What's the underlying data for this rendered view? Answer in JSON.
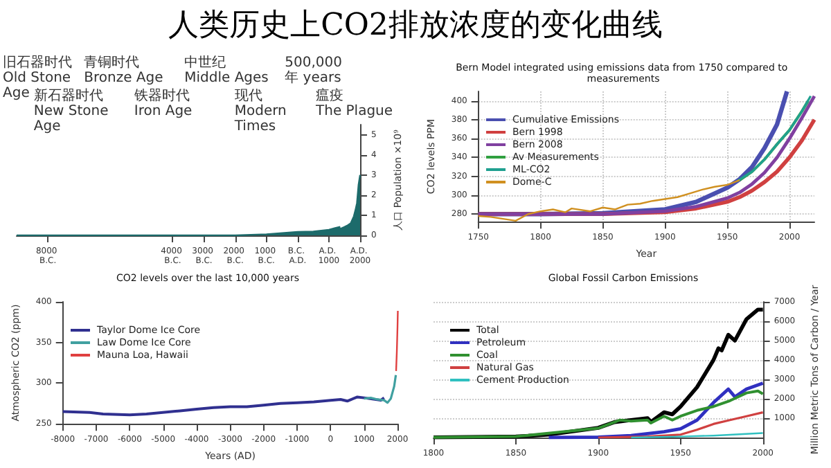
{
  "chart_data": [
    {
      "type": "area",
      "title": "人类历史上CO2排放浓度的变化曲线",
      "y2label": "人口 Population ×10⁹",
      "marker": "none",
      "x": [
        -9000,
        -8000,
        -6000,
        -4000,
        -3000,
        -2000,
        -1000,
        0,
        500,
        1000,
        1200,
        1340,
        1350,
        1400,
        1500,
        1600,
        1700,
        1800,
        1850,
        1900,
        1950,
        2000
      ],
      "series": [
        {
          "color": "#1d6b6b",
          "axis": "y2",
          "values": [
            0,
            0,
            0,
            0,
            0,
            0,
            0.05,
            0.17,
            0.19,
            0.28,
            0.36,
            0.42,
            0.33,
            0.35,
            0.42,
            0.5,
            0.6,
            0.95,
            1.25,
            1.6,
            2.5,
            3
          ]
        }
      ],
      "xlim": [
        -9000,
        2000
      ],
      "xticks": [
        {
          "value": -8000,
          "label": "8000 B.C."
        },
        {
          "value": -4000,
          "label": "4000 B.C."
        },
        {
          "value": -3000,
          "label": "3000 B.C."
        },
        {
          "value": -2000,
          "label": "2000 B.C."
        },
        {
          "value": -1000,
          "label": "1000 B.C."
        },
        {
          "value": 0,
          "label": "B.C. A.D."
        },
        {
          "value": 1000,
          "label": "A.D. 1000"
        },
        {
          "value": 2000,
          "label": "A.D. 2000"
        }
      ],
      "y2lim": [
        0,
        5.5
      ],
      "y2ticks": [
        0,
        1,
        2,
        3,
        4,
        5
      ],
      "annotations": [
        "旧石器时代\nOld Stone Age",
        "新石器时代\nNew Stone Age",
        "青铜时代\nBronze Age",
        "铁器时代\nIron Age",
        "中世纪\nMiddle Ages",
        "现代\nModern Times",
        "500,000\n年 years",
        "瘟疫\nThe Plague"
      ]
    },
    {
      "type": "line",
      "title": "Bern Model integrated using emissions data from 1750 compared to measurements",
      "xlabel": "Year",
      "ylabel": "CO2 levels PPM",
      "legend": "top left",
      "grid": true,
      "marker": "none",
      "xlim": [
        1750,
        2020
      ],
      "xticks": [
        1750,
        1800,
        1850,
        1900,
        1950,
        2000
      ],
      "ylim": [
        272,
        410
      ],
      "yticks": [
        280,
        300,
        320,
        340,
        360,
        380,
        400
      ],
      "series": [
        {
          "name": "Cumulative Emissions",
          "color": "#4a4fb0",
          "x": [
            1750,
            1800,
            1850,
            1900,
            1925,
            1950,
            1960,
            1970,
            1980,
            1990,
            1998
          ],
          "values": [
            280,
            280,
            281,
            285,
            293,
            308,
            317,
            330,
            350,
            375,
            410
          ]
        },
        {
          "name": "Bern 1998",
          "color": "#d04040",
          "x": [
            1750,
            1850,
            1900,
            1925,
            1950,
            1960,
            1970,
            1980,
            1990,
            2000,
            2010,
            2020
          ],
          "values": [
            280,
            280,
            282,
            286,
            293,
            298,
            305,
            314,
            325,
            340,
            358,
            380
          ]
        },
        {
          "name": "Bern 2008",
          "color": "#8040a0",
          "x": [
            1750,
            1850,
            1900,
            1925,
            1950,
            1960,
            1970,
            1980,
            1990,
            2000,
            2010,
            2020
          ],
          "values": [
            280,
            280,
            283,
            288,
            297,
            303,
            312,
            324,
            340,
            360,
            382,
            405
          ]
        },
        {
          "name": "Av Measurements",
          "color": "#30a040",
          "x": [
            1960,
            1970,
            1980,
            1990,
            2000,
            2010,
            2015
          ],
          "values": [
            316,
            325,
            338,
            354,
            369,
            389,
            400
          ]
        },
        {
          "name": "ML-CO2",
          "color": "#20a090",
          "x": [
            1958,
            1970,
            1980,
            1990,
            2000,
            2010,
            2017
          ],
          "values": [
            315,
            325,
            338,
            354,
            369,
            389,
            405
          ]
        },
        {
          "name": "Dome-C",
          "color": "#d09020",
          "x": [
            1750,
            1760,
            1780,
            1790,
            1800,
            1810,
            1820,
            1825,
            1840,
            1850,
            1860,
            1870,
            1880,
            1890,
            1900,
            1910,
            1920,
            1930,
            1940,
            1950,
            1960
          ],
          "values": [
            278,
            277,
            273,
            280,
            283,
            285,
            282,
            286,
            283,
            287,
            285,
            290,
            291,
            294,
            296,
            298,
            302,
            306,
            309,
            311,
            316
          ]
        }
      ]
    },
    {
      "type": "line",
      "title": "CO2 levels over the last 10,000 years",
      "xlabel": "Years (AD)",
      "ylabel": "Atmospheric CO2 (ppm)",
      "legend": "top left",
      "marker": "none",
      "xlim": [
        -8000,
        2010
      ],
      "xticks": [
        -8000,
        -7000,
        -6000,
        -5000,
        -4000,
        -3000,
        -2000,
        -1000,
        0,
        1000,
        2000
      ],
      "ylim": [
        250,
        400
      ],
      "yticks": [
        250,
        300,
        350,
        400
      ],
      "series": [
        {
          "name": "Taylor Dome Ice Core",
          "color": "#303090",
          "x": [
            -8000,
            -7200,
            -6800,
            -6000,
            -5500,
            -4500,
            -4000,
            -3500,
            -3000,
            -2500,
            -2000,
            -1500,
            -1000,
            -500,
            0,
            300,
            500,
            800,
            1000,
            1500,
            1600
          ],
          "values": [
            265,
            264,
            262,
            261,
            262,
            266,
            268,
            270,
            271,
            271,
            273,
            275,
            276,
            277,
            279,
            280,
            278,
            283,
            282,
            279,
            282
          ]
        },
        {
          "name": "Law Dome Ice Core",
          "color": "#40a0a0",
          "x": [
            1000,
            1200,
            1400,
            1600,
            1700,
            1800,
            1900,
            1950
          ],
          "values": [
            281,
            282,
            280,
            279,
            276,
            281,
            296,
            310
          ]
        },
        {
          "name": "Mauna Loa, Hawaii",
          "color": "#e04040",
          "x": [
            1958,
            1980,
            2000,
            2010
          ],
          "values": [
            315,
            339,
            369,
            389
          ]
        }
      ]
    },
    {
      "type": "line",
      "title": "Global Fossil Carbon Emissions",
      "y2label": "Million Metric Tons of Carbon / Year",
      "legend": "top left",
      "grid": "y",
      "marker": "none",
      "xlim": [
        1800,
        2000
      ],
      "xticks": [
        1800,
        1850,
        1900,
        1950,
        2000
      ],
      "y2lim": [
        0,
        7000
      ],
      "y2ticks": [
        1000,
        2000,
        3000,
        4000,
        5000,
        6000,
        7000
      ],
      "series": [
        {
          "name": "Total",
          "color": "#000000",
          "axis": "y2",
          "x": [
            1800,
            1850,
            1870,
            1900,
            1910,
            1920,
            1930,
            1932,
            1940,
            1945,
            1950,
            1960,
            1970,
            1973,
            1975,
            1979,
            1983,
            1990,
            1997,
            2000
          ],
          "values": [
            10,
            50,
            150,
            500,
            800,
            900,
            1000,
            800,
            1300,
            1200,
            1600,
            2600,
            4000,
            4600,
            4500,
            5300,
            5000,
            6100,
            6600,
            6600
          ]
        },
        {
          "name": "Petroleum",
          "color": "#3030c0",
          "axis": "y2",
          "x": [
            1870,
            1900,
            1920,
            1940,
            1950,
            1960,
            1970,
            1979,
            1983,
            1990,
            2000
          ],
          "values": [
            0,
            20,
            100,
            300,
            450,
            900,
            1800,
            2500,
            2100,
            2500,
            2800
          ]
        },
        {
          "name": "Coal",
          "color": "#309030",
          "axis": "y2",
          "x": [
            1800,
            1850,
            1900,
            1913,
            1920,
            1930,
            1932,
            1940,
            1945,
            1950,
            1960,
            1970,
            1980,
            1990,
            1997,
            2000
          ],
          "values": [
            10,
            50,
            480,
            900,
            850,
            900,
            750,
            1100,
            900,
            1100,
            1400,
            1600,
            1900,
            2300,
            2400,
            2250
          ]
        },
        {
          "name": "Natural Gas",
          "color": "#d04040",
          "axis": "y2",
          "x": [
            1900,
            1930,
            1950,
            1960,
            1970,
            1980,
            1990,
            2000
          ],
          "values": [
            0,
            50,
            150,
            400,
            700,
            900,
            1100,
            1300
          ]
        },
        {
          "name": "Cement Production",
          "color": "#30c0c0",
          "axis": "y2",
          "x": [
            1920,
            1950,
            1970,
            2000
          ],
          "values": [
            0,
            50,
            100,
            230
          ]
        }
      ]
    }
  ]
}
